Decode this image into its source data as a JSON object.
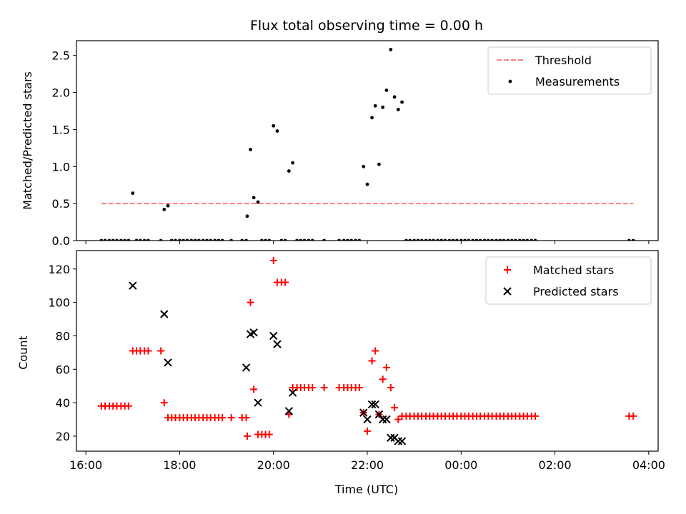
{
  "chart_data": [
    {
      "type": "scatter",
      "title": "Flux total observing time = 0.00 h",
      "xlabel": "",
      "ylabel": "Matched/Predicted stars",
      "ylim": [
        0,
        2.7
      ],
      "yticks": [
        0.0,
        0.5,
        1.0,
        1.5,
        2.0,
        2.5
      ],
      "ytick_labels": [
        "0.0",
        "0.5",
        "1.0",
        "1.5",
        "2.0",
        "2.5"
      ],
      "xlim_hours": [
        15.8,
        28.2
      ],
      "xticks_hours": [
        16,
        18,
        20,
        22,
        24,
        26,
        28
      ],
      "legend": {
        "placement": "top-right",
        "entries": [
          "Threshold",
          "Measurements"
        ]
      },
      "colors": {
        "threshold": "#ff7f7f",
        "measurements": "#000000"
      },
      "threshold": {
        "name": "Threshold",
        "value": 0.5,
        "x_range": [
          16.33,
          27.67
        ]
      },
      "series": [
        {
          "name": "Measurements",
          "marker": "dot",
          "points": [
            [
              16.33,
              0
            ],
            [
              16.41,
              0
            ],
            [
              16.5,
              0
            ],
            [
              16.58,
              0
            ],
            [
              16.66,
              0
            ],
            [
              16.75,
              0
            ],
            [
              16.83,
              0
            ],
            [
              16.91,
              0
            ],
            [
              17.0,
              0.64
            ],
            [
              17.08,
              0
            ],
            [
              17.16,
              0
            ],
            [
              17.25,
              0
            ],
            [
              17.33,
              0
            ],
            [
              17.6,
              0
            ],
            [
              17.67,
              0.42
            ],
            [
              17.75,
              0.47
            ],
            [
              17.83,
              0
            ],
            [
              17.91,
              0
            ],
            [
              18.0,
              0
            ],
            [
              18.08,
              0
            ],
            [
              18.16,
              0
            ],
            [
              18.25,
              0
            ],
            [
              18.33,
              0
            ],
            [
              18.41,
              0
            ],
            [
              18.5,
              0
            ],
            [
              18.58,
              0
            ],
            [
              18.66,
              0
            ],
            [
              18.75,
              0
            ],
            [
              18.83,
              0
            ],
            [
              18.91,
              0
            ],
            [
              19.1,
              0
            ],
            [
              19.33,
              0
            ],
            [
              19.42,
              0
            ],
            [
              19.44,
              0.33
            ],
            [
              19.51,
              1.23
            ],
            [
              19.58,
              0.58
            ],
            [
              19.67,
              0.52
            ],
            [
              19.75,
              0
            ],
            [
              19.83,
              0
            ],
            [
              19.91,
              0
            ],
            [
              20.0,
              1.55
            ],
            [
              20.08,
              1.48
            ],
            [
              20.17,
              0
            ],
            [
              20.25,
              0
            ],
            [
              20.33,
              0.94
            ],
            [
              20.41,
              1.05
            ],
            [
              20.5,
              0
            ],
            [
              20.58,
              0
            ],
            [
              20.66,
              0
            ],
            [
              20.75,
              0
            ],
            [
              20.83,
              0
            ],
            [
              21.08,
              0
            ],
            [
              21.4,
              0
            ],
            [
              21.5,
              0
            ],
            [
              21.58,
              0
            ],
            [
              21.66,
              0
            ],
            [
              21.75,
              0
            ],
            [
              21.83,
              0
            ],
            [
              21.92,
              1.0
            ],
            [
              22.0,
              0.76
            ],
            [
              22.1,
              1.66
            ],
            [
              22.17,
              1.82
            ],
            [
              22.25,
              1.03
            ],
            [
              22.33,
              1.8
            ],
            [
              22.41,
              2.03
            ],
            [
              22.5,
              2.58
            ],
            [
              22.58,
              1.94
            ],
            [
              22.66,
              1.77
            ],
            [
              22.74,
              1.87
            ],
            [
              22.83,
              0
            ],
            [
              22.91,
              0
            ],
            [
              23.0,
              0
            ],
            [
              23.08,
              0
            ],
            [
              23.16,
              0
            ],
            [
              23.25,
              0
            ],
            [
              23.33,
              0
            ],
            [
              23.41,
              0
            ],
            [
              23.5,
              0
            ],
            [
              23.58,
              0
            ],
            [
              23.66,
              0
            ],
            [
              23.75,
              0
            ],
            [
              23.83,
              0
            ],
            [
              23.91,
              0
            ],
            [
              24.0,
              0
            ],
            [
              24.08,
              0
            ],
            [
              24.16,
              0
            ],
            [
              24.25,
              0
            ],
            [
              24.33,
              0
            ],
            [
              24.41,
              0
            ],
            [
              24.5,
              0
            ],
            [
              24.58,
              0
            ],
            [
              24.66,
              0
            ],
            [
              24.75,
              0
            ],
            [
              24.83,
              0
            ],
            [
              24.91,
              0
            ],
            [
              25.0,
              0
            ],
            [
              25.08,
              0
            ],
            [
              25.16,
              0
            ],
            [
              25.25,
              0
            ],
            [
              25.33,
              0
            ],
            [
              25.41,
              0
            ],
            [
              25.5,
              0
            ],
            [
              25.58,
              0
            ],
            [
              27.58,
              0
            ],
            [
              27.67,
              0
            ]
          ]
        }
      ]
    },
    {
      "type": "scatter",
      "title": "",
      "xlabel": "Time (UTC)",
      "ylabel": "Count",
      "ylim": [
        11,
        131
      ],
      "yticks": [
        20,
        40,
        60,
        80,
        100,
        120
      ],
      "ytick_labels": [
        "20",
        "40",
        "60",
        "80",
        "100",
        "120"
      ],
      "xlim_hours": [
        15.8,
        28.2
      ],
      "xticks_hours": [
        16,
        18,
        20,
        22,
        24,
        26,
        28
      ],
      "xtick_labels": [
        "16:00",
        "18:00",
        "20:00",
        "22:00",
        "00:00",
        "02:00",
        "04:00"
      ],
      "legend": {
        "placement": "top-right",
        "entries": [
          "Matched stars",
          "Predicted stars"
        ]
      },
      "colors": {
        "matched": "#ff0000",
        "predicted": "#000000"
      },
      "series": [
        {
          "name": "Matched stars",
          "marker": "plus",
          "points": [
            [
              16.33,
              38
            ],
            [
              16.41,
              38
            ],
            [
              16.5,
              38
            ],
            [
              16.58,
              38
            ],
            [
              16.66,
              38
            ],
            [
              16.75,
              38
            ],
            [
              16.83,
              38
            ],
            [
              16.91,
              38
            ],
            [
              17.0,
              71
            ],
            [
              17.08,
              71
            ],
            [
              17.16,
              71
            ],
            [
              17.25,
              71
            ],
            [
              17.33,
              71
            ],
            [
              17.6,
              71
            ],
            [
              17.67,
              40
            ],
            [
              17.75,
              31
            ],
            [
              17.83,
              31
            ],
            [
              17.91,
              31
            ],
            [
              18.0,
              31
            ],
            [
              18.08,
              31
            ],
            [
              18.16,
              31
            ],
            [
              18.25,
              31
            ],
            [
              18.33,
              31
            ],
            [
              18.41,
              31
            ],
            [
              18.5,
              31
            ],
            [
              18.58,
              31
            ],
            [
              18.66,
              31
            ],
            [
              18.75,
              31
            ],
            [
              18.83,
              31
            ],
            [
              18.91,
              31
            ],
            [
              19.1,
              31
            ],
            [
              19.33,
              31
            ],
            [
              19.42,
              31
            ],
            [
              19.44,
              20
            ],
            [
              19.51,
              100
            ],
            [
              19.58,
              48
            ],
            [
              19.67,
              21
            ],
            [
              19.75,
              21
            ],
            [
              19.83,
              21
            ],
            [
              19.91,
              21
            ],
            [
              20.0,
              125
            ],
            [
              20.08,
              112
            ],
            [
              20.17,
              112
            ],
            [
              20.25,
              112
            ],
            [
              20.33,
              33
            ],
            [
              20.41,
              49
            ],
            [
              20.5,
              49
            ],
            [
              20.58,
              49
            ],
            [
              20.66,
              49
            ],
            [
              20.75,
              49
            ],
            [
              20.83,
              49
            ],
            [
              21.08,
              49
            ],
            [
              21.4,
              49
            ],
            [
              21.5,
              49
            ],
            [
              21.58,
              49
            ],
            [
              21.66,
              49
            ],
            [
              21.75,
              49
            ],
            [
              21.83,
              49
            ],
            [
              21.92,
              34
            ],
            [
              22.0,
              23
            ],
            [
              22.1,
              65
            ],
            [
              22.17,
              71
            ],
            [
              22.25,
              33
            ],
            [
              22.33,
              54
            ],
            [
              22.41,
              61
            ],
            [
              22.5,
              49
            ],
            [
              22.58,
              37
            ],
            [
              22.66,
              30
            ],
            [
              22.74,
              32
            ],
            [
              22.83,
              32
            ],
            [
              22.91,
              32
            ],
            [
              23.0,
              32
            ],
            [
              23.08,
              32
            ],
            [
              23.16,
              32
            ],
            [
              23.25,
              32
            ],
            [
              23.33,
              32
            ],
            [
              23.41,
              32
            ],
            [
              23.5,
              32
            ],
            [
              23.58,
              32
            ],
            [
              23.66,
              32
            ],
            [
              23.75,
              32
            ],
            [
              23.83,
              32
            ],
            [
              23.91,
              32
            ],
            [
              24.0,
              32
            ],
            [
              24.08,
              32
            ],
            [
              24.16,
              32
            ],
            [
              24.25,
              32
            ],
            [
              24.33,
              32
            ],
            [
              24.41,
              32
            ],
            [
              24.5,
              32
            ],
            [
              24.58,
              32
            ],
            [
              24.66,
              32
            ],
            [
              24.75,
              32
            ],
            [
              24.83,
              32
            ],
            [
              24.91,
              32
            ],
            [
              25.0,
              32
            ],
            [
              25.08,
              32
            ],
            [
              25.16,
              32
            ],
            [
              25.25,
              32
            ],
            [
              25.33,
              32
            ],
            [
              25.41,
              32
            ],
            [
              25.5,
              32
            ],
            [
              25.58,
              32
            ],
            [
              27.58,
              32
            ],
            [
              27.67,
              32
            ]
          ]
        },
        {
          "name": "Predicted stars",
          "marker": "x",
          "points": [
            [
              17.0,
              110
            ],
            [
              17.67,
              93
            ],
            [
              17.75,
              64
            ],
            [
              19.42,
              61
            ],
            [
              19.51,
              81
            ],
            [
              19.58,
              82
            ],
            [
              19.67,
              40
            ],
            [
              20.0,
              80
            ],
            [
              20.08,
              75
            ],
            [
              20.33,
              35
            ],
            [
              20.41,
              46
            ],
            [
              21.92,
              34
            ],
            [
              22.0,
              30
            ],
            [
              22.1,
              39
            ],
            [
              22.17,
              39
            ],
            [
              22.25,
              33
            ],
            [
              22.33,
              30
            ],
            [
              22.41,
              30
            ],
            [
              22.5,
              19
            ],
            [
              22.58,
              19
            ],
            [
              22.66,
              17
            ],
            [
              22.74,
              17
            ]
          ]
        }
      ]
    }
  ]
}
